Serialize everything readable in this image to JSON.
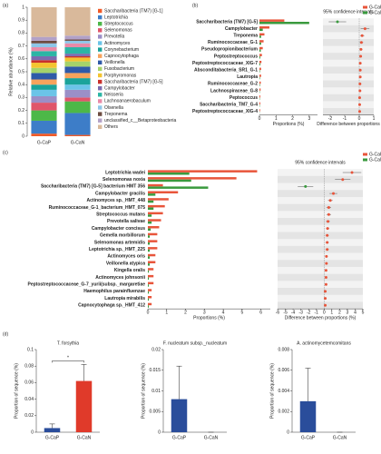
{
  "chart_data": [
    {
      "type": "stacked_bar",
      "label": "(a)",
      "y_label": "Relative abundance (%)",
      "categories": [
        "G-CaP",
        "G-CaN"
      ],
      "ylim": [
        0,
        1
      ],
      "yticks": [
        0,
        0.1,
        0.2,
        0.3,
        0.4,
        0.5,
        0.6,
        0.7,
        0.8,
        0.9,
        1
      ],
      "series": [
        {
          "name": "Saccharibacteria (TM7) [G-1]",
          "color": "#f05a28",
          "values": [
            0.02,
            0.01
          ]
        },
        {
          "name": "Leptotrichia",
          "color": "#3d7dc8",
          "values": [
            0.1,
            0.17
          ]
        },
        {
          "name": "Streptococcus",
          "color": "#4db848",
          "values": [
            0.08,
            0.09
          ]
        },
        {
          "name": "Selenomonas",
          "color": "#e0556a",
          "values": [
            0.06,
            0.03
          ]
        },
        {
          "name": "Prevotella",
          "color": "#9b8fc7",
          "values": [
            0.05,
            0.06
          ]
        },
        {
          "name": "Actinomyces",
          "color": "#6bc4e8",
          "values": [
            0.05,
            0.04
          ]
        },
        {
          "name": "Corynebacterium",
          "color": "#1aa39a",
          "values": [
            0.04,
            0.05
          ]
        },
        {
          "name": "Capnocytophaga",
          "color": "#f7a35c",
          "values": [
            0.04,
            0.04
          ]
        },
        {
          "name": "Veillonella",
          "color": "#2f5aa8",
          "values": [
            0.05,
            0.05
          ]
        },
        {
          "name": "Fusobacterium",
          "color": "#a5d36a",
          "values": [
            0.04,
            0.04
          ]
        },
        {
          "name": "Porphyromonas",
          "color": "#f4c430",
          "values": [
            0.04,
            0.03
          ]
        },
        {
          "name": "Saccharibacteria (TM7) [G-5]",
          "color": "#c9302c",
          "values": [
            0.02,
            0.01
          ]
        },
        {
          "name": "Campylobacter",
          "color": "#7b6bb0",
          "values": [
            0.03,
            0.02
          ]
        },
        {
          "name": "Neisseria",
          "color": "#2bb5a5",
          "values": [
            0.04,
            0.05
          ]
        },
        {
          "name": "Lachnoanaerobaculum",
          "color": "#e98aa8",
          "values": [
            0.03,
            0.03
          ]
        },
        {
          "name": "Olsenella",
          "color": "#8dc6e8",
          "values": [
            0.03,
            0.02
          ]
        },
        {
          "name": "Treponema",
          "color": "#6d4c41",
          "values": [
            0.02,
            0.01
          ]
        },
        {
          "name": "unclassified_c__Betaproteobacteria",
          "color": "#b2a1c7",
          "values": [
            0.03,
            0.03
          ]
        },
        {
          "name": "Others",
          "color": "#d9b99b",
          "values": [
            0.23,
            0.22
          ]
        }
      ]
    },
    {
      "type": "extended_error_bar",
      "label": "(b)",
      "ci_title": "95% confidence intervals",
      "x_label": "Proportions (%)",
      "diff_label": "Difference between proportions",
      "categories": [
        "Saccharibacteria (TM7) [G-5]",
        "Campylobacter",
        "Treponema",
        "Ruminococcaceae_G-1",
        "Pseudopropionibacterium",
        "Peptostreptococcus",
        "Peptostreptococcaceae_XIG-7",
        "Absconditabacteria_SR1_G-1",
        "Lautropia",
        "Ruminococcaceae_G-2",
        "Lachnospiraceae_G-8",
        "Peptococcus",
        "Saccharibacteria_TM7_G-4",
        "Peptostreptococcaceae_XIG-4"
      ],
      "series": [
        {
          "name": "G-CaP",
          "color": "#e8553b",
          "values": [
            1.5,
            0.6,
            0.3,
            0.25,
            0.2,
            0.15,
            0.12,
            0.1,
            0.1,
            0.08,
            0.07,
            0.05,
            0.05,
            0.04
          ]
        },
        {
          "name": "G-CaN",
          "color": "#3a9a3e",
          "values": [
            3.0,
            0.2,
            0.1,
            0.1,
            0.08,
            0.05,
            0.05,
            0.03,
            0.03,
            0.03,
            0.02,
            0.02,
            0.02,
            0.01
          ]
        }
      ],
      "diff": [
        -1.5,
        0.4,
        0.2,
        0.15,
        0.12,
        0.1,
        0.07,
        0.07,
        0.07,
        0.05,
        0.05,
        0.03,
        0.03,
        0.03
      ],
      "err": [
        0.6,
        0.3,
        0.15,
        0.12,
        0.1,
        0.08,
        0.06,
        0.06,
        0.06,
        0.05,
        0.05,
        0.03,
        0.03,
        0.03
      ],
      "xlim": [
        0,
        3.5
      ],
      "xticks": [
        0,
        1,
        2,
        3
      ],
      "diff_lim": [
        -2.5,
        1
      ],
      "diff_ticks": [
        -2,
        -1,
        0,
        1
      ]
    },
    {
      "type": "extended_error_bar",
      "label": "(c)",
      "ci_title": "95% confidence intervals",
      "x_label": "Proportions (%)",
      "diff_label": "Difference between proportions (%)",
      "categories": [
        "Leptotrichia wadei",
        "Selenomonas noxia",
        "Saccharibacteria (TM7) [G-5] bacterium HMT 356",
        "Campylobacter gracilis",
        "Actinomyces sp._HMT_448",
        "Ruminococcaceae_G-1_bacterium_HMT_075",
        "Streptococcus mutans",
        "Prevotella salivae",
        "Campylobacter concisus",
        "Gemella morbillorum",
        "Selenomonas artemidis",
        "Leptotrichia sp._HMT_225",
        "Actinomyces oris",
        "Veillonella atypica",
        "Kingella oralis",
        "Actinomyces johnsonii",
        "Peptostreptococcaceae_G-7_yurii(subsp._margaretiae",
        "Haemophilus parainfluenzae",
        "Lautropia mirabilis",
        "Capnocytophaga sp._HMT_412"
      ],
      "series": [
        {
          "name": "G-CaP",
          "color": "#e8553b",
          "values": [
            5.8,
            4.7,
            0.8,
            1.6,
            1.1,
            0.9,
            0.8,
            0.7,
            0.6,
            0.5,
            0.5,
            0.5,
            0.4,
            0.4,
            0.3,
            0.3,
            0.3,
            0.2,
            0.2,
            0.2
          ]
        },
        {
          "name": "G-CaN",
          "color": "#3a9a3e",
          "values": [
            2.2,
            2.3,
            3.2,
            0.4,
            0.3,
            0.3,
            0.2,
            0.2,
            0.15,
            0.1,
            0.1,
            0.1,
            0.1,
            0.1,
            0.05,
            0.05,
            0.05,
            0.05,
            0.05,
            0.05
          ]
        }
      ],
      "diff": [
        3.6,
        2.4,
        -2.4,
        1.2,
        0.8,
        0.6,
        0.6,
        0.5,
        0.45,
        0.4,
        0.4,
        0.4,
        0.3,
        0.3,
        0.25,
        0.25,
        0.25,
        0.15,
        0.15,
        0.15
      ],
      "err": [
        1.2,
        1.0,
        1.0,
        0.5,
        0.3,
        0.3,
        0.3,
        0.25,
        0.2,
        0.2,
        0.2,
        0.2,
        0.15,
        0.15,
        0.12,
        0.12,
        0.12,
        0.1,
        0.1,
        0.1
      ],
      "xlim": [
        0,
        6.5
      ],
      "xticks": [
        0,
        1,
        2,
        3,
        4,
        5,
        6
      ],
      "diff_lim": [
        -6,
        5
      ],
      "diff_ticks": [
        -6,
        -5,
        -4,
        -3,
        -2,
        -1,
        0,
        1,
        2,
        3,
        4,
        5
      ]
    },
    {
      "type": "bar",
      "label": "(d)",
      "title": "T. forsythia",
      "y_label": "Proportion of sequence (%)",
      "annotation": "*",
      "categories": [
        "G-CaP",
        "G-CaN"
      ],
      "colors": [
        "#2a4d9b",
        "#e03a2a"
      ],
      "values": [
        0.005,
        0.062
      ],
      "errors": [
        0.005,
        0.02
      ],
      "ylim": [
        0,
        0.1
      ],
      "yticks": [
        0,
        0.02,
        0.04,
        0.06,
        0.08,
        0.1
      ]
    },
    {
      "type": "bar",
      "title": "F. nucleatum subsp._nucleatum",
      "y_label": "Proportion of sequence (%)",
      "categories": [
        "G-CaP",
        "G-CaN"
      ],
      "colors": [
        "#2a4d9b",
        "#e03a2a"
      ],
      "values": [
        0.008,
        0
      ],
      "errors": [
        0.008,
        0
      ],
      "ylim": [
        0,
        0.02
      ],
      "yticks": [
        0,
        0.005,
        0.01,
        0.015,
        0.02
      ]
    },
    {
      "type": "bar",
      "title": "A. actinomycetemcomitans",
      "y_label": "Proportion of sequence (%)",
      "categories": [
        "G-CaP",
        "G-CaN"
      ],
      "colors": [
        "#2a4d9b",
        "#e03a2a"
      ],
      "values": [
        0.003,
        0
      ],
      "errors": [
        0.0032,
        0
      ],
      "ylim": [
        0,
        0.008
      ],
      "yticks": [
        0,
        0.002,
        0.004,
        0.006,
        0.008
      ]
    }
  ]
}
